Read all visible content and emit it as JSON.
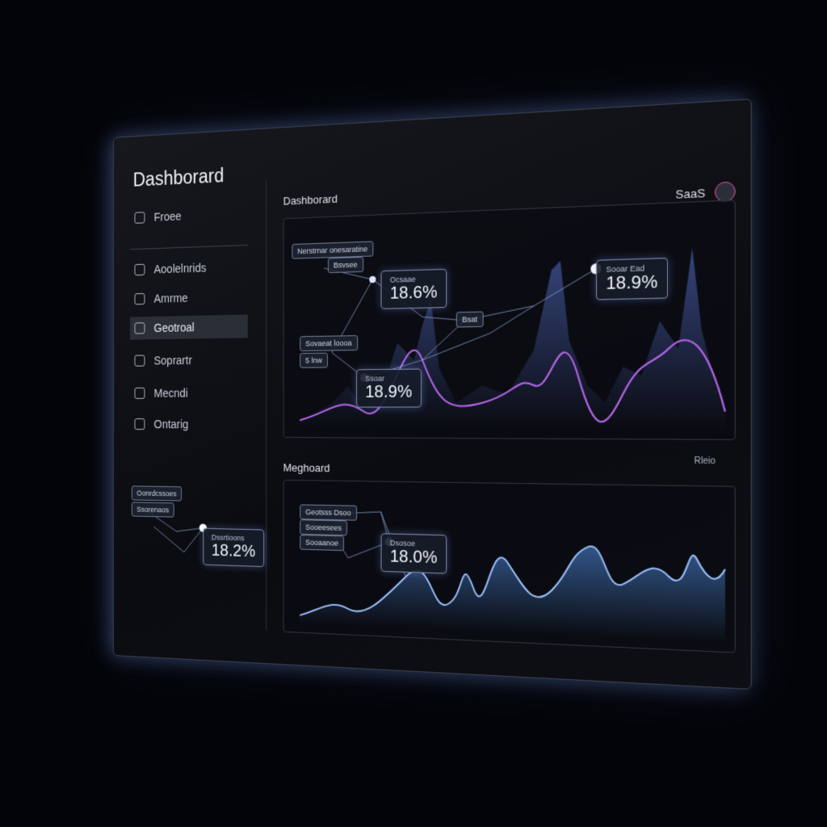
{
  "sidebar": {
    "title": "Dashborard",
    "nav": [
      "Froee",
      "Aoolelnrids",
      "Amrme",
      "Geotroal",
      "Soprartr",
      "Mecndi",
      "Ontarig"
    ],
    "active": 3,
    "widget": {
      "tags": [
        "Oonrdcssoes",
        "Ssorenaos"
      ],
      "card_label": "Dssrtioons",
      "card_value": "18.2%"
    }
  },
  "header": {
    "title": "Dashborard",
    "brand": "SaaS"
  },
  "panel_1": {
    "tags": [
      "Nerstrnar onesaratine",
      "Bsvsee",
      "Sovaeat loooa",
      "5 lnw",
      "Bsat"
    ],
    "cards": [
      {
        "label": "Ocsaae",
        "value": "18.6%"
      },
      {
        "label": "Ssoar",
        "value": "18.9%"
      },
      {
        "label": "Sooar Ead",
        "value": "18.9%"
      }
    ]
  },
  "panel_2": {
    "title": "Meghoard",
    "action": "Rleio",
    "tags": [
      "Geotsss Dsoo",
      "Sooeesees",
      "Sooaanoe"
    ],
    "cards": [
      {
        "label": "Dsosoe",
        "value": "18.0%"
      }
    ]
  }
}
